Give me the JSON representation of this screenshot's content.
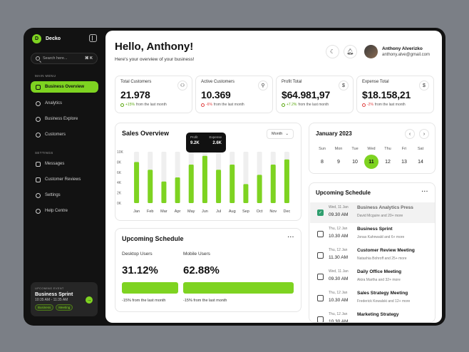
{
  "sidebar": {
    "brand": {
      "logo": "D",
      "name": "Decko"
    },
    "search": {
      "placeholder": "Search here...",
      "shortcut": "⌘ K"
    },
    "main_menu_label": "MAIN MENU",
    "main_menu": [
      {
        "label": "Business Overview",
        "icon": "grid-icon",
        "active": true
      },
      {
        "label": "Analytics",
        "icon": "analytics-icon"
      },
      {
        "label": "Business Explore",
        "icon": "explore-icon"
      },
      {
        "label": "Customers",
        "icon": "users-icon"
      }
    ],
    "settings_label": "SETTINGS",
    "settings": [
      {
        "label": "Messages",
        "icon": "mail-icon"
      },
      {
        "label": "Customer Reviews",
        "icon": "chat-icon"
      },
      {
        "label": "Settings",
        "icon": "gear-icon"
      },
      {
        "label": "Help Centre",
        "icon": "help-icon"
      }
    ],
    "event": {
      "label": "UPCOMING EVENT",
      "title": "Business Sprint",
      "time": "10:35 AM - 11:35 AM",
      "tags": [
        "Business",
        "Meeting"
      ]
    }
  },
  "header": {
    "greeting": "Hello, Anthony!",
    "subtitle": "Here's your overview of your business!",
    "user_name": "Anthony Alverizko",
    "user_email": "anthony.alve@gmail.com"
  },
  "stats": [
    {
      "label": "Total Customers",
      "value": "21.978",
      "change": "+15%",
      "change_dir": "up",
      "note": "from the last month",
      "icon": "users-icon"
    },
    {
      "label": "Active Customers",
      "value": "10.369",
      "change": "-6%",
      "change_dir": "down",
      "note": "from the last month",
      "icon": "user-icon"
    },
    {
      "label": "Profit Total",
      "value": "$64.981,97",
      "change": "+7.2%",
      "change_dir": "up",
      "note": "from the last month",
      "icon": "dollar-icon"
    },
    {
      "label": "Expense Total",
      "value": "$18.158,21",
      "change": "-2%",
      "change_dir": "down",
      "note": "from the last month",
      "icon": "dollar-icon"
    }
  ],
  "sales": {
    "title": "Sales Overview",
    "period": "Month",
    "tooltip": {
      "profit_label": "Profit",
      "expense_label": "Expense",
      "profit": "9.2K",
      "expense": "2.6K"
    }
  },
  "chart_data": {
    "type": "bar",
    "title": "Sales Overview",
    "categories": [
      "Jan",
      "Feb",
      "Mar",
      "Apr",
      "May",
      "Jun",
      "Jul",
      "Aug",
      "Sep",
      "Oct",
      "Nov",
      "Dec"
    ],
    "series": [
      {
        "name": "Profit",
        "values": [
          8,
          6.5,
          4.2,
          5,
          7.5,
          9.2,
          6.5,
          7.5,
          3.7,
          5.5,
          7.5,
          8.5
        ]
      },
      {
        "name": "Expense",
        "values": [
          10,
          10,
          10,
          10,
          10,
          10,
          10,
          10,
          10,
          10,
          10,
          10
        ]
      }
    ],
    "yticks": [
      "10K",
      "8K",
      "6K",
      "4K",
      "2K",
      "0K"
    ],
    "ylim": [
      0,
      10
    ],
    "colors": {
      "profit": "#7ed321",
      "background": "#efefef"
    }
  },
  "usage": {
    "title": "Upcoming Schedule",
    "desktop_label": "Desktop Users",
    "desktop_value": "31.12%",
    "desktop_note": "-15% from the last month",
    "mobile_label": "Mobile Users",
    "mobile_value": "62.88%",
    "mobile_note": "-15% from the last month"
  },
  "calendar": {
    "title": "January 2023",
    "days": [
      "Sun",
      "Mon",
      "Tue",
      "Wed",
      "Thu",
      "Fri",
      "Sat"
    ],
    "dates": [
      "8",
      "9",
      "10",
      "11",
      "12",
      "13",
      "14"
    ],
    "active_index": 3
  },
  "schedule": {
    "title": "Upcoming Schedule",
    "items": [
      {
        "date": "Wed, 11 Jan",
        "time": "09.30 AM",
        "title": "Business Analytics Press",
        "sub": "David Mcguire and 20+ more",
        "checked": true
      },
      {
        "date": "Thu, 12 Jan",
        "time": "10.30 AM",
        "title": "Business Sprint",
        "sub": "Jonas Kahnwald and 6+ more",
        "checked": false
      },
      {
        "date": "Thu, 12 Jan",
        "time": "11.30 AM",
        "title": "Customer Review Meeting",
        "sub": "Natashia Bohroff and 25+ more",
        "checked": false
      },
      {
        "date": "Wed, 11 Jan",
        "time": "09.30 AM",
        "title": "Daily Office Meeting",
        "sub": "Akira Martha and 32+ more",
        "checked": false
      },
      {
        "date": "Thu, 12 Jan",
        "time": "10.30 AM",
        "title": "Sales Strategy Meeting",
        "sub": "Frederick Kowalski and 12+ more",
        "checked": false
      },
      {
        "date": "Thu, 12 Jan",
        "time": "10.30 AM",
        "title": "Marketing Strategy",
        "sub": "",
        "checked": false
      }
    ]
  }
}
